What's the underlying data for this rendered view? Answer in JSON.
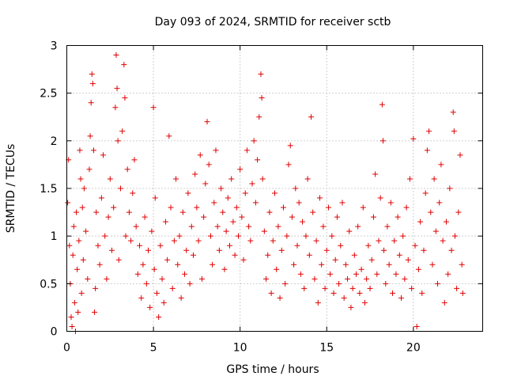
{
  "chart_data": {
    "type": "scatter",
    "title": "Day 093 of 2024, SRMTID for receiver sctb",
    "xlabel": "GPS time / hours",
    "ylabel": "SRMTID / TECUs",
    "xlim": [
      0,
      24
    ],
    "ylim": [
      0,
      3
    ],
    "xticks": [
      0,
      5,
      10,
      15,
      20
    ],
    "xtick_labels": [
      "0",
      "5",
      "10",
      "15",
      "20"
    ],
    "yticks": [
      0,
      0.5,
      1,
      1.5,
      2,
      2.5,
      3
    ],
    "ytick_labels": [
      "0",
      "0.5",
      "1",
      "1.5",
      "2",
      "2.5",
      "3"
    ],
    "grid": true,
    "marker": "+",
    "color": "#e00000",
    "series": [
      {
        "name": "SRMTID",
        "points": [
          [
            0.05,
            1.35
          ],
          [
            0.1,
            1.8
          ],
          [
            0.15,
            0.9
          ],
          [
            0.2,
            0.5
          ],
          [
            0.25,
            0.15
          ],
          [
            0.3,
            0.05
          ],
          [
            0.35,
            0.8
          ],
          [
            0.4,
            1.1
          ],
          [
            0.45,
            0.3
          ],
          [
            0.5,
            0.0
          ],
          [
            0.55,
            1.25
          ],
          [
            0.6,
            0.65
          ],
          [
            0.65,
            0.2
          ],
          [
            0.7,
            0.95
          ],
          [
            0.75,
            1.9
          ],
          [
            0.8,
            1.6
          ],
          [
            0.85,
            0.4
          ],
          [
            0.9,
            1.3
          ],
          [
            0.95,
            0.75
          ],
          [
            1.0,
            1.5
          ],
          [
            1.1,
            1.05
          ],
          [
            1.2,
            0.55
          ],
          [
            1.3,
            1.7
          ],
          [
            1.35,
            2.05
          ],
          [
            1.4,
            2.4
          ],
          [
            1.45,
            2.7
          ],
          [
            1.5,
            2.6
          ],
          [
            1.55,
            1.9
          ],
          [
            1.6,
            0.2
          ],
          [
            1.65,
            0.45
          ],
          [
            1.7,
            1.25
          ],
          [
            1.8,
            0.9
          ],
          [
            1.9,
            0.7
          ],
          [
            2.0,
            1.4
          ],
          [
            2.1,
            1.85
          ],
          [
            2.2,
            1.0
          ],
          [
            2.3,
            0.55
          ],
          [
            2.4,
            1.2
          ],
          [
            2.5,
            1.6
          ],
          [
            2.6,
            0.85
          ],
          [
            2.7,
            1.3
          ],
          [
            2.8,
            2.35
          ],
          [
            2.85,
            2.9
          ],
          [
            2.9,
            2.55
          ],
          [
            2.95,
            2.0
          ],
          [
            3.0,
            0.75
          ],
          [
            3.1,
            1.5
          ],
          [
            3.2,
            2.1
          ],
          [
            3.3,
            2.8
          ],
          [
            3.35,
            2.45
          ],
          [
            3.4,
            1.0
          ],
          [
            3.5,
            1.7
          ],
          [
            3.6,
            1.25
          ],
          [
            3.7,
            0.95
          ],
          [
            3.8,
            1.45
          ],
          [
            3.9,
            1.8
          ],
          [
            4.0,
            1.1
          ],
          [
            4.1,
            0.6
          ],
          [
            4.2,
            0.9
          ],
          [
            4.3,
            0.35
          ],
          [
            4.4,
            0.7
          ],
          [
            4.5,
            1.2
          ],
          [
            4.6,
            0.5
          ],
          [
            4.7,
            0.85
          ],
          [
            4.8,
            0.25
          ],
          [
            4.9,
            1.05
          ],
          [
            5.0,
            2.35
          ],
          [
            5.05,
            0.65
          ],
          [
            5.1,
            1.4
          ],
          [
            5.2,
            0.4
          ],
          [
            5.3,
            0.15
          ],
          [
            5.4,
            0.9
          ],
          [
            5.5,
            0.55
          ],
          [
            5.6,
            0.3
          ],
          [
            5.7,
            1.15
          ],
          [
            5.8,
            0.75
          ],
          [
            5.9,
            2.05
          ],
          [
            6.0,
            1.3
          ],
          [
            6.1,
            0.45
          ],
          [
            6.2,
            0.95
          ],
          [
            6.3,
            1.6
          ],
          [
            6.4,
            0.7
          ],
          [
            6.5,
            1.0
          ],
          [
            6.6,
            0.35
          ],
          [
            6.7,
            1.25
          ],
          [
            6.8,
            0.6
          ],
          [
            6.9,
            0.85
          ],
          [
            7.0,
            1.45
          ],
          [
            7.1,
            0.5
          ],
          [
            7.2,
            1.1
          ],
          [
            7.3,
            0.8
          ],
          [
            7.4,
            1.65
          ],
          [
            7.5,
            1.3
          ],
          [
            7.6,
            0.95
          ],
          [
            7.7,
            1.85
          ],
          [
            7.8,
            0.55
          ],
          [
            7.9,
            1.2
          ],
          [
            8.0,
            1.55
          ],
          [
            8.1,
            2.2
          ],
          [
            8.2,
            1.75
          ],
          [
            8.3,
            1.0
          ],
          [
            8.4,
            0.7
          ],
          [
            8.5,
            1.35
          ],
          [
            8.6,
            1.9
          ],
          [
            8.7,
            1.1
          ],
          [
            8.8,
            0.85
          ],
          [
            8.9,
            1.5
          ],
          [
            9.0,
            1.25
          ],
          [
            9.1,
            0.65
          ],
          [
            9.2,
            1.05
          ],
          [
            9.3,
            1.4
          ],
          [
            9.4,
            0.9
          ],
          [
            9.5,
            1.6
          ],
          [
            9.6,
            1.15
          ],
          [
            9.7,
            0.8
          ],
          [
            9.8,
            1.3
          ],
          [
            9.9,
            1.0
          ],
          [
            10.0,
            1.7
          ],
          [
            10.1,
            1.2
          ],
          [
            10.2,
            0.75
          ],
          [
            10.3,
            1.45
          ],
          [
            10.4,
            1.9
          ],
          [
            10.5,
            1.1
          ],
          [
            10.6,
            0.95
          ],
          [
            10.7,
            1.55
          ],
          [
            10.8,
            2.0
          ],
          [
            10.9,
            1.35
          ],
          [
            11.0,
            1.8
          ],
          [
            11.1,
            2.25
          ],
          [
            11.2,
            2.7
          ],
          [
            11.25,
            2.45
          ],
          [
            11.3,
            1.6
          ],
          [
            11.4,
            1.05
          ],
          [
            11.5,
            0.55
          ],
          [
            11.6,
            0.8
          ],
          [
            11.7,
            1.25
          ],
          [
            11.8,
            0.4
          ],
          [
            11.9,
            0.95
          ],
          [
            12.0,
            1.45
          ],
          [
            12.1,
            0.65
          ],
          [
            12.2,
            1.1
          ],
          [
            12.3,
            0.35
          ],
          [
            12.4,
            0.85
          ],
          [
            12.5,
            1.3
          ],
          [
            12.6,
            0.5
          ],
          [
            12.7,
            1.0
          ],
          [
            12.8,
            1.75
          ],
          [
            12.9,
            1.95
          ],
          [
            13.0,
            1.2
          ],
          [
            13.1,
            0.7
          ],
          [
            13.2,
            1.5
          ],
          [
            13.3,
            0.9
          ],
          [
            13.4,
            1.35
          ],
          [
            13.5,
            0.6
          ],
          [
            13.6,
            1.15
          ],
          [
            13.7,
            0.45
          ],
          [
            13.8,
            1.0
          ],
          [
            13.9,
            1.6
          ],
          [
            14.0,
            0.8
          ],
          [
            14.1,
            2.25
          ],
          [
            14.2,
            1.25
          ],
          [
            14.3,
            0.55
          ],
          [
            14.4,
            0.95
          ],
          [
            14.5,
            0.3
          ],
          [
            14.6,
            1.4
          ],
          [
            14.7,
            0.7
          ],
          [
            14.8,
            1.1
          ],
          [
            14.9,
            0.45
          ],
          [
            15.0,
            0.85
          ],
          [
            15.1,
            1.3
          ],
          [
            15.2,
            0.6
          ],
          [
            15.3,
            1.0
          ],
          [
            15.4,
            0.4
          ],
          [
            15.5,
            0.75
          ],
          [
            15.6,
            1.2
          ],
          [
            15.7,
            0.5
          ],
          [
            15.8,
            0.9
          ],
          [
            15.9,
            1.35
          ],
          [
            16.0,
            0.35
          ],
          [
            16.1,
            0.7
          ],
          [
            16.2,
            0.55
          ],
          [
            16.3,
            1.05
          ],
          [
            16.4,
            0.25
          ],
          [
            16.5,
            0.45
          ],
          [
            16.6,
            0.8
          ],
          [
            16.7,
            0.6
          ],
          [
            16.8,
            1.1
          ],
          [
            16.9,
            0.4
          ],
          [
            17.0,
            0.65
          ],
          [
            17.1,
            1.3
          ],
          [
            17.2,
            0.3
          ],
          [
            17.3,
            0.55
          ],
          [
            17.4,
            0.9
          ],
          [
            17.5,
            0.45
          ],
          [
            17.6,
            0.75
          ],
          [
            17.7,
            1.2
          ],
          [
            17.8,
            1.65
          ],
          [
            17.9,
            0.6
          ],
          [
            18.0,
            0.95
          ],
          [
            18.1,
            1.4
          ],
          [
            18.2,
            2.38
          ],
          [
            18.25,
            2.0
          ],
          [
            18.3,
            0.85
          ],
          [
            18.4,
            0.5
          ],
          [
            18.5,
            1.1
          ],
          [
            18.6,
            0.7
          ],
          [
            18.7,
            1.35
          ],
          [
            18.8,
            0.4
          ],
          [
            18.9,
            0.95
          ],
          [
            19.0,
            0.6
          ],
          [
            19.1,
            1.2
          ],
          [
            19.2,
            0.8
          ],
          [
            19.3,
            0.35
          ],
          [
            19.4,
            1.0
          ],
          [
            19.5,
            0.55
          ],
          [
            19.6,
            1.3
          ],
          [
            19.7,
            0.75
          ],
          [
            19.8,
            1.6
          ],
          [
            19.9,
            0.45
          ],
          [
            20.0,
            2.02
          ],
          [
            20.1,
            0.9
          ],
          [
            20.2,
            0.05
          ],
          [
            20.3,
            0.65
          ],
          [
            20.4,
            1.15
          ],
          [
            20.5,
            0.4
          ],
          [
            20.6,
            0.85
          ],
          [
            20.7,
            1.45
          ],
          [
            20.8,
            1.9
          ],
          [
            20.9,
            2.1
          ],
          [
            21.0,
            1.25
          ],
          [
            21.1,
            0.7
          ],
          [
            21.2,
            1.6
          ],
          [
            21.3,
            1.05
          ],
          [
            21.4,
            0.5
          ],
          [
            21.5,
            1.35
          ],
          [
            21.6,
            1.75
          ],
          [
            21.7,
            0.95
          ],
          [
            21.8,
            0.3
          ],
          [
            21.9,
            1.15
          ],
          [
            22.0,
            0.6
          ],
          [
            22.1,
            1.5
          ],
          [
            22.2,
            0.85
          ],
          [
            22.3,
            2.3
          ],
          [
            22.35,
            2.1
          ],
          [
            22.4,
            1.0
          ],
          [
            22.5,
            0.45
          ],
          [
            22.6,
            1.25
          ],
          [
            22.7,
            1.85
          ],
          [
            22.8,
            0.7
          ],
          [
            22.85,
            0.4
          ]
        ]
      }
    ]
  }
}
